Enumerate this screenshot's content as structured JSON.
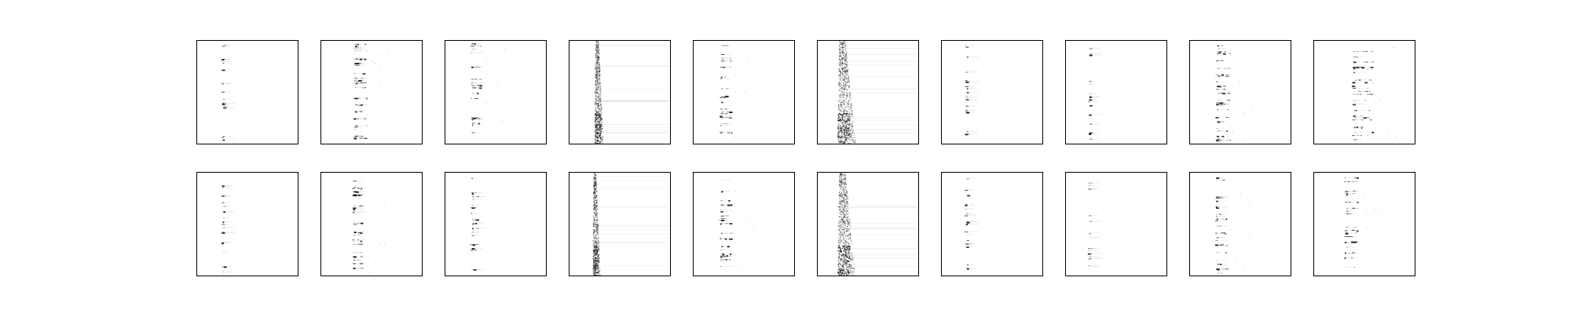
{
  "figure": {
    "background": "#ffffff",
    "frame_color": "#000000",
    "ink_color": "#000000",
    "rows": 2,
    "cols": 10,
    "axes": "none",
    "tick_labels": "none"
  },
  "panels": [
    {
      "row": 0,
      "col": 0,
      "pattern": "dots",
      "band": 0.26,
      "spread": 0.03,
      "density": 0.35,
      "extras": 0
    },
    {
      "row": 0,
      "col": 1,
      "pattern": "dots",
      "band": 0.34,
      "spread": 0.12,
      "density": 0.9,
      "extras": 1
    },
    {
      "row": 0,
      "col": 2,
      "pattern": "dots",
      "band": 0.27,
      "spread": 0.1,
      "density": 0.35,
      "extras": 1
    },
    {
      "row": 0,
      "col": 3,
      "pattern": "dense",
      "band": 0.26,
      "spread": 0.06,
      "density": 0.8,
      "extras": 0
    },
    {
      "row": 0,
      "col": 4,
      "pattern": "dots",
      "band": 0.28,
      "spread": 0.1,
      "density": 0.6,
      "extras": 1
    },
    {
      "row": 0,
      "col": 5,
      "pattern": "dense",
      "band": 0.22,
      "spread": 0.12,
      "density": 1.0,
      "extras": 0
    },
    {
      "row": 0,
      "col": 6,
      "pattern": "dots",
      "band": 0.25,
      "spread": 0.02,
      "density": 0.45,
      "extras": 0
    },
    {
      "row": 0,
      "col": 7,
      "pattern": "dots",
      "band": 0.24,
      "spread": 0.02,
      "density": 0.25,
      "extras": 0
    },
    {
      "row": 0,
      "col": 8,
      "pattern": "dots",
      "band": 0.28,
      "spread": 0.12,
      "density": 0.7,
      "extras": 1
    },
    {
      "row": 0,
      "col": 9,
      "pattern": "dots",
      "band": 0.4,
      "spread": 0.2,
      "density": 0.6,
      "extras": 1
    },
    {
      "row": 1,
      "col": 0,
      "pattern": "dots",
      "band": 0.26,
      "spread": 0.03,
      "density": 0.45,
      "extras": 0
    },
    {
      "row": 1,
      "col": 1,
      "pattern": "dots",
      "band": 0.33,
      "spread": 0.08,
      "density": 0.8,
      "extras": 1
    },
    {
      "row": 1,
      "col": 2,
      "pattern": "dots",
      "band": 0.27,
      "spread": 0.06,
      "density": 0.45,
      "extras": 0
    },
    {
      "row": 1,
      "col": 3,
      "pattern": "dense",
      "band": 0.24,
      "spread": 0.05,
      "density": 0.75,
      "extras": 0
    },
    {
      "row": 1,
      "col": 4,
      "pattern": "dots",
      "band": 0.28,
      "spread": 0.1,
      "density": 0.6,
      "extras": 1
    },
    {
      "row": 1,
      "col": 5,
      "pattern": "dense",
      "band": 0.22,
      "spread": 0.12,
      "density": 1.0,
      "extras": 0
    },
    {
      "row": 1,
      "col": 6,
      "pattern": "dots",
      "band": 0.25,
      "spread": 0.02,
      "density": 0.55,
      "extras": 0
    },
    {
      "row": 1,
      "col": 7,
      "pattern": "dots",
      "band": 0.24,
      "spread": 0.02,
      "density": 0.3,
      "extras": 0
    },
    {
      "row": 1,
      "col": 8,
      "pattern": "dots",
      "band": 0.27,
      "spread": 0.1,
      "density": 0.55,
      "extras": 1
    },
    {
      "row": 1,
      "col": 9,
      "pattern": "dots",
      "band": 0.32,
      "spread": 0.12,
      "density": 0.5,
      "extras": 1
    }
  ]
}
